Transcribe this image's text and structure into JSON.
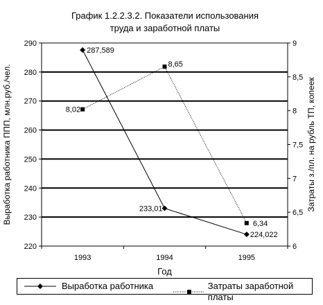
{
  "chart_data": {
    "type": "line",
    "title": "График 1.2.2.3.2.  Показатели использования",
    "subtitle": "труда и заработной платы",
    "xlabel": "Год",
    "ylabel_left": "Выработка работника ППП, млн.руб./чел.",
    "ylabel_right": "Затраты з./пл. на рубль ТП, копеек",
    "categories": [
      "1993",
      "1994",
      "1995"
    ],
    "y_left": {
      "lim": [
        220,
        290
      ],
      "ticks": [
        "220",
        "230",
        "240",
        "250",
        "260",
        "270",
        "280",
        "290"
      ]
    },
    "y_right": {
      "lim": [
        6,
        9
      ],
      "ticks": [
        "6",
        "6,5",
        "7",
        "7,5",
        "8",
        "8,5",
        "9"
      ]
    },
    "grid": true,
    "legend_position": "bottom",
    "series": [
      {
        "name": "Выработка работника",
        "axis": "left",
        "marker": "diamond",
        "line_style": "solid",
        "values": [
          287.589,
          233.01,
          224.022
        ],
        "labels": [
          "287,589",
          "233,01",
          "224,022"
        ]
      },
      {
        "name": "Затраты заработной платы",
        "axis": "right",
        "marker": "square",
        "line_style": "dotted",
        "values": [
          8.02,
          8.65,
          6.34
        ],
        "labels": [
          "8,02",
          "8,65",
          "6,34"
        ]
      }
    ]
  }
}
